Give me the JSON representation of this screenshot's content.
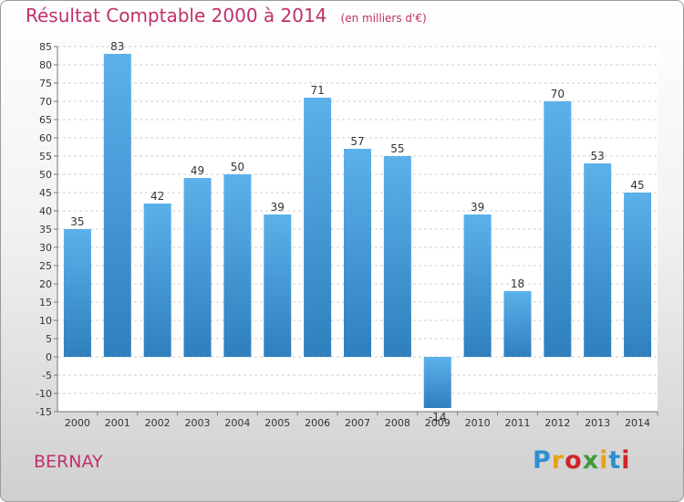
{
  "header": {
    "title": "Résultat Comptable 2000 à 2014",
    "subtitle": "(en milliers d'€)"
  },
  "footer": {
    "commune": "BERNAY",
    "logo": "Proxiti",
    "logo_colors": [
      "#2e8fd4",
      "#e9a21b",
      "#d2232a",
      "#3e9b3a",
      "#e9a21b",
      "#2e8fd4",
      "#d2232a"
    ]
  },
  "colors": {
    "bar": "#3f97d8",
    "bar_light": "#5cb1ea",
    "bar_dark": "#2f7fbe",
    "grid": "#cfcfcf",
    "axis": "#777777",
    "title": "#c0306a"
  },
  "chart_data": {
    "type": "bar",
    "title": "Résultat Comptable 2000 à 2014",
    "subtitle": "(en milliers d'€)",
    "categories": [
      "2000",
      "2001",
      "2002",
      "2003",
      "2004",
      "2005",
      "2006",
      "2007",
      "2008",
      "2009",
      "2010",
      "2011",
      "2012",
      "2013",
      "2014"
    ],
    "values": [
      35,
      83,
      42,
      49,
      50,
      39,
      71,
      57,
      55,
      -14,
      39,
      18,
      70,
      53,
      45
    ],
    "data_labels": [
      "35",
      "83",
      "42",
      "49",
      "50",
      "39",
      "71",
      "57",
      "55",
      "-14",
      "39",
      "18",
      "70",
      "53",
      "45"
    ],
    "ylim": [
      -15,
      85
    ],
    "yticks": [
      -15,
      -10,
      -5,
      0,
      5,
      10,
      15,
      20,
      25,
      30,
      35,
      40,
      45,
      50,
      55,
      60,
      65,
      70,
      75,
      80,
      85
    ],
    "grid": true,
    "legend": "none"
  }
}
